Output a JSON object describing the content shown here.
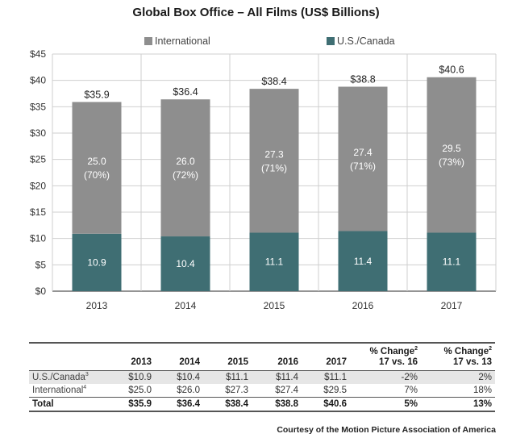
{
  "colors": {
    "international": "#8e8e8e",
    "us_canada": "#3f6e73"
  },
  "chart_data": {
    "type": "bar",
    "stacked": true,
    "title": "Global Box Office – All Films (US$ Billions)",
    "xlabel": "",
    "ylabel": "",
    "ylim": [
      0,
      45
    ],
    "yticks": [
      0,
      5,
      10,
      15,
      20,
      25,
      30,
      35,
      40,
      45
    ],
    "ytick_labels": [
      "$0",
      "$5",
      "$10",
      "$15",
      "$20",
      "$25",
      "$30",
      "$35",
      "$40",
      "$45"
    ],
    "grid": true,
    "legend_position": "top",
    "categories": [
      "2013",
      "2014",
      "2015",
      "2016",
      "2017"
    ],
    "series": [
      {
        "name": "U.S./Canada",
        "values": [
          10.9,
          10.4,
          11.1,
          11.4,
          11.1
        ],
        "labels": [
          "10.9",
          "10.4",
          "11.1",
          "11.4",
          "11.1"
        ]
      },
      {
        "name": "International",
        "values": [
          25.0,
          26.0,
          27.3,
          27.4,
          29.5
        ],
        "labels": [
          "25.0",
          "26.0",
          "27.3",
          "27.4",
          "29.5"
        ],
        "share_labels": [
          "(70%)",
          "(72%)",
          "(71%)",
          "(71%)",
          "(73%)"
        ]
      }
    ],
    "totals": [
      35.9,
      36.4,
      38.4,
      38.8,
      40.6
    ],
    "total_labels": [
      "$35.9",
      "$36.4",
      "$38.4",
      "$38.8",
      "$40.6"
    ]
  },
  "table": {
    "headers": [
      "",
      "2013",
      "2014",
      "2015",
      "2016",
      "2017"
    ],
    "change_header_a": {
      "line1": "% Change",
      "sup": "2",
      "line2": "17 vs. 16"
    },
    "change_header_b": {
      "line1": "% Change",
      "sup": "2",
      "line2": "17 vs. 13"
    },
    "rows": [
      {
        "label": "U.S./Canada",
        "sup": "3",
        "cells": [
          "$10.9",
          "$10.4",
          "$11.1",
          "$11.4",
          "$11.1",
          "-2%",
          "2%"
        ]
      },
      {
        "label": "International",
        "sup": "4",
        "cells": [
          "$25.0",
          "$26.0",
          "$27.3",
          "$27.4",
          "$29.5",
          "7%",
          "18%"
        ]
      },
      {
        "label": "Total",
        "sup": "",
        "cells": [
          "$35.9",
          "$36.4",
          "$38.4",
          "$38.8",
          "$40.6",
          "5%",
          "13%"
        ]
      }
    ]
  },
  "credit": "Courtesy of the Motion Picture Association of America"
}
